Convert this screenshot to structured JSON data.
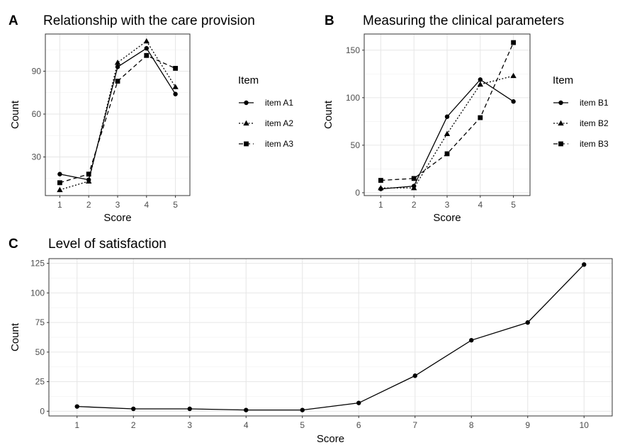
{
  "chart_data": [
    {
      "panel": "A",
      "type": "line",
      "title": "Relationship with the care provision",
      "xlabel": "Score",
      "ylabel": "Count",
      "categories": [
        1,
        2,
        3,
        4,
        5
      ],
      "ylim": [
        3,
        116
      ],
      "yticks": [
        30,
        60,
        90
      ],
      "grid": true,
      "legend": {
        "title": "Item",
        "position": "right"
      },
      "series": [
        {
          "name": "item A1",
          "linetype": "solid",
          "marker": "circle",
          "values": [
            18,
            14,
            93,
            106,
            74
          ]
        },
        {
          "name": "item A2",
          "linetype": "dotted",
          "marker": "triangle",
          "values": [
            7,
            13,
            96,
            111,
            79
          ]
        },
        {
          "name": "item A3",
          "linetype": "dashed",
          "marker": "square",
          "values": [
            12,
            18,
            83,
            101,
            92
          ]
        }
      ]
    },
    {
      "panel": "B",
      "type": "line",
      "title": "Measuring the clinical parameters",
      "xlabel": "Score",
      "ylabel": "Count",
      "categories": [
        1,
        2,
        3,
        4,
        5
      ],
      "ylim": [
        -3,
        167
      ],
      "yticks": [
        0,
        50,
        100,
        150
      ],
      "grid": true,
      "legend": {
        "title": "Item",
        "position": "right"
      },
      "series": [
        {
          "name": "item B1",
          "linetype": "solid",
          "marker": "circle",
          "values": [
            4,
            7,
            80,
            119,
            96
          ]
        },
        {
          "name": "item B2",
          "linetype": "dotted",
          "marker": "triangle",
          "values": [
            5,
            5,
            62,
            114,
            123
          ]
        },
        {
          "name": "item B3",
          "linetype": "dashed",
          "marker": "square",
          "values": [
            13,
            15,
            41,
            79,
            158
          ]
        }
      ]
    },
    {
      "panel": "C",
      "type": "line",
      "title": "Level of satisfaction",
      "xlabel": "Score",
      "ylabel": "Count",
      "categories": [
        1,
        2,
        3,
        4,
        5,
        6,
        7,
        8,
        9,
        10
      ],
      "ylim": [
        -4,
        129
      ],
      "yticks": [
        0,
        25,
        50,
        75,
        100,
        125
      ],
      "grid": true,
      "series": [
        {
          "linetype": "solid",
          "marker": "circle",
          "values": [
            4,
            2,
            2,
            1,
            1,
            7,
            30,
            60,
            75,
            124
          ]
        }
      ]
    }
  ]
}
